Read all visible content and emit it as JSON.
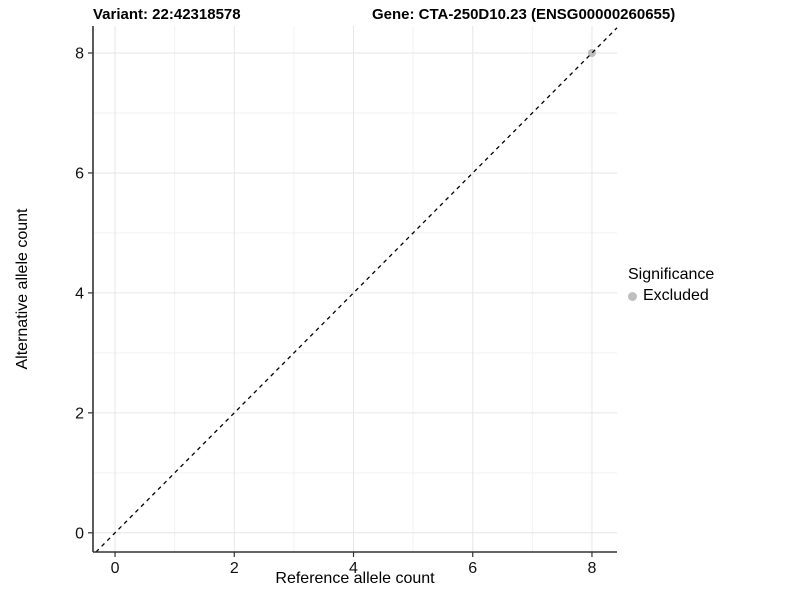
{
  "title": {
    "variant": "Variant: 22:42318578",
    "gene": "Gene: CTA-250D10.23 (ENSG00000260655)"
  },
  "axes": {
    "x": {
      "label": "Reference allele count",
      "ticks": [
        0,
        2,
        4,
        6,
        8
      ]
    },
    "y": {
      "label": "Alternative allele count",
      "ticks": [
        0,
        2,
        4,
        6,
        8
      ]
    }
  },
  "legend": {
    "title": "Significance",
    "items": [
      {
        "label": "Excluded",
        "color": "#bebebe"
      }
    ]
  },
  "colors": {
    "background": "#ffffff",
    "axis_line": "#333333",
    "grid_major": "#e6e6e6",
    "grid_minor": "#f2f2f2",
    "tick_text": "#111111",
    "identity_line": "#000000",
    "excluded_point": "#bebebe"
  },
  "chart_data": {
    "type": "scatter",
    "title": "Variant: 22:42318578   Gene: CTA-250D10.23 (ENSG00000260655)",
    "xlabel": "Reference allele count",
    "ylabel": "Alternative allele count",
    "xlim": [
      -0.37,
      8.42
    ],
    "ylim": [
      -0.32,
      8.45
    ],
    "x_ticks": [
      0,
      2,
      4,
      6,
      8
    ],
    "y_ticks": [
      0,
      2,
      4,
      6,
      8
    ],
    "grid": "major gridlines at even values, minor gridlines at odd values",
    "legend_position": "right",
    "series": [
      {
        "name": "Excluded",
        "color": "#bebebe",
        "points": [
          [
            8,
            8
          ]
        ]
      }
    ],
    "reference_line": {
      "kind": "identity y=x",
      "style": "dashed",
      "color": "#000000"
    }
  }
}
